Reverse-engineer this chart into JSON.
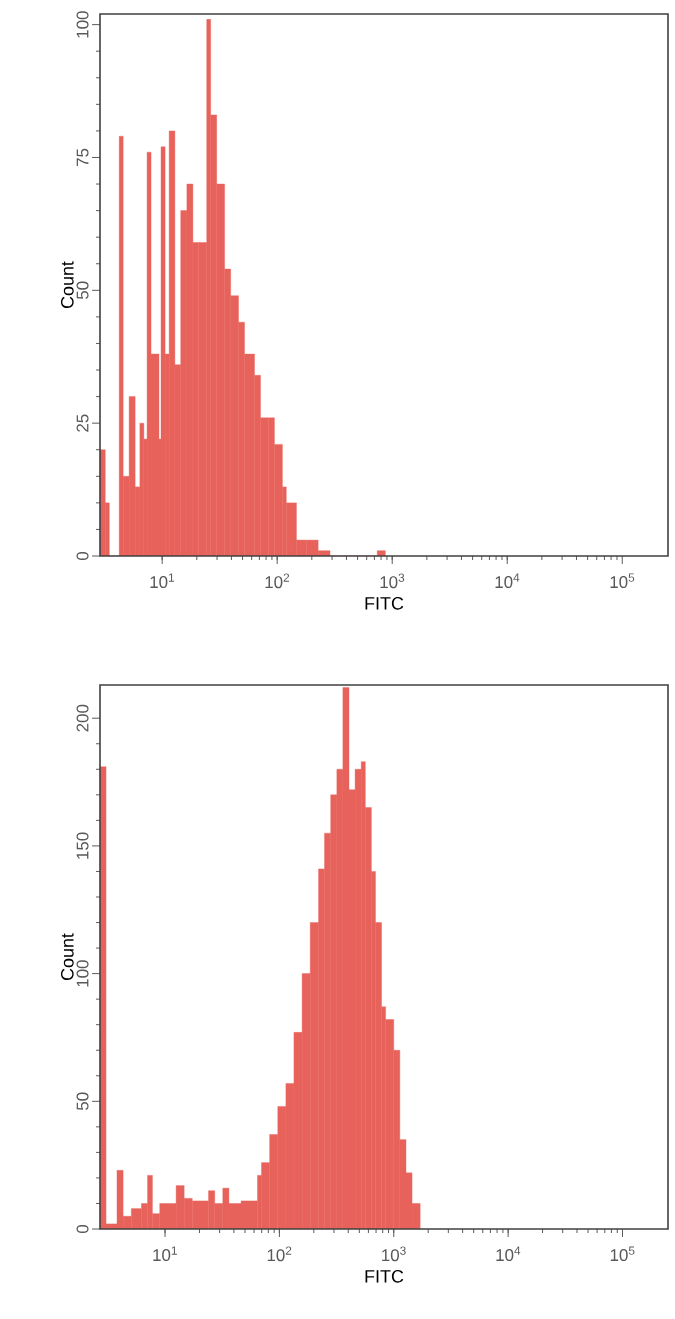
{
  "chart_data": [
    {
      "type": "histogram",
      "xlabel": "FITC",
      "ylabel": "Count",
      "log": "x",
      "color": "#e8625c",
      "bins": [
        2.88,
        3.2,
        3.47,
        4.23,
        4.58,
        5.16,
        5.82,
        6.4,
        6.93,
        7.39,
        8.0,
        8.32,
        9.38,
        9.77,
        10.6,
        11.5,
        12.9,
        14.5,
        16.4,
        18.5,
        20.8,
        24.4,
        26.4,
        29.8,
        34.9,
        39.4,
        46.1,
        52.0,
        63.5,
        71.6,
        83.9,
        94.6,
        111,
        120,
        147,
        179,
        227,
        288,
        741,
        871
      ],
      "values": [
        20,
        10,
        0,
        79,
        15,
        30,
        13,
        25,
        22,
        76,
        38,
        38,
        22,
        77,
        38,
        80,
        36,
        65,
        70,
        59,
        59,
        101,
        83,
        70,
        54,
        49,
        44,
        38,
        34,
        26,
        26,
        21,
        13,
        10,
        3,
        3,
        1,
        0,
        1
      ],
      "xlim": [
        2.88,
        250000
      ],
      "ylim": [
        0,
        102
      ],
      "xticks": [
        {
          "value": 10,
          "label": "10$^{1}$"
        },
        {
          "value": 100,
          "label": "10$^{2}$"
        },
        {
          "value": 1000,
          "label": "10$^{3}$"
        },
        {
          "value": 10000,
          "label": "10$^{4}$"
        },
        {
          "value": 100000,
          "label": "10$^{5}$"
        }
      ],
      "yticks": [
        0,
        25,
        50,
        75,
        100
      ]
    },
    {
      "type": "histogram",
      "xlabel": "FITC",
      "ylabel": "Count",
      "log": "x",
      "color": "#e8625c",
      "bins": [
        2.7,
        3.05,
        3.8,
        4.3,
        5.07,
        6.22,
        7.03,
        7.76,
        8.99,
        12.5,
        14.7,
        17.3,
        24.0,
        27.2,
        32.0,
        36.2,
        46.2,
        64.3,
        69.7,
        82.2,
        96.8,
        114,
        134,
        158,
        186,
        220,
        248,
        281,
        318,
        359,
        406,
        459,
        519,
        564,
        637,
        692,
        782,
        849,
        1000,
        1130,
        1279,
        1445,
        1702
      ],
      "values": [
        181,
        2,
        23,
        5,
        8,
        10,
        21,
        6,
        10,
        17,
        12,
        11,
        15,
        10,
        16,
        10,
        11,
        21,
        26,
        37,
        48,
        57,
        77,
        100,
        120,
        141,
        155,
        170,
        180,
        212,
        172,
        180,
        183,
        165,
        140,
        120,
        87,
        82,
        70,
        35,
        22,
        10
      ],
      "xlim": [
        2.7,
        250000
      ],
      "ylim": [
        0,
        213
      ],
      "xticks": [
        {
          "value": 10,
          "label": "10$^{1}$"
        },
        {
          "value": 100,
          "label": "10$^{2}$"
        },
        {
          "value": 1000,
          "label": "10$^{3}$"
        },
        {
          "value": 10000,
          "label": "10$^{4}$"
        },
        {
          "value": 100000,
          "label": "10$^{5}$"
        }
      ],
      "yticks": [
        0,
        50,
        100,
        150,
        200
      ]
    }
  ]
}
